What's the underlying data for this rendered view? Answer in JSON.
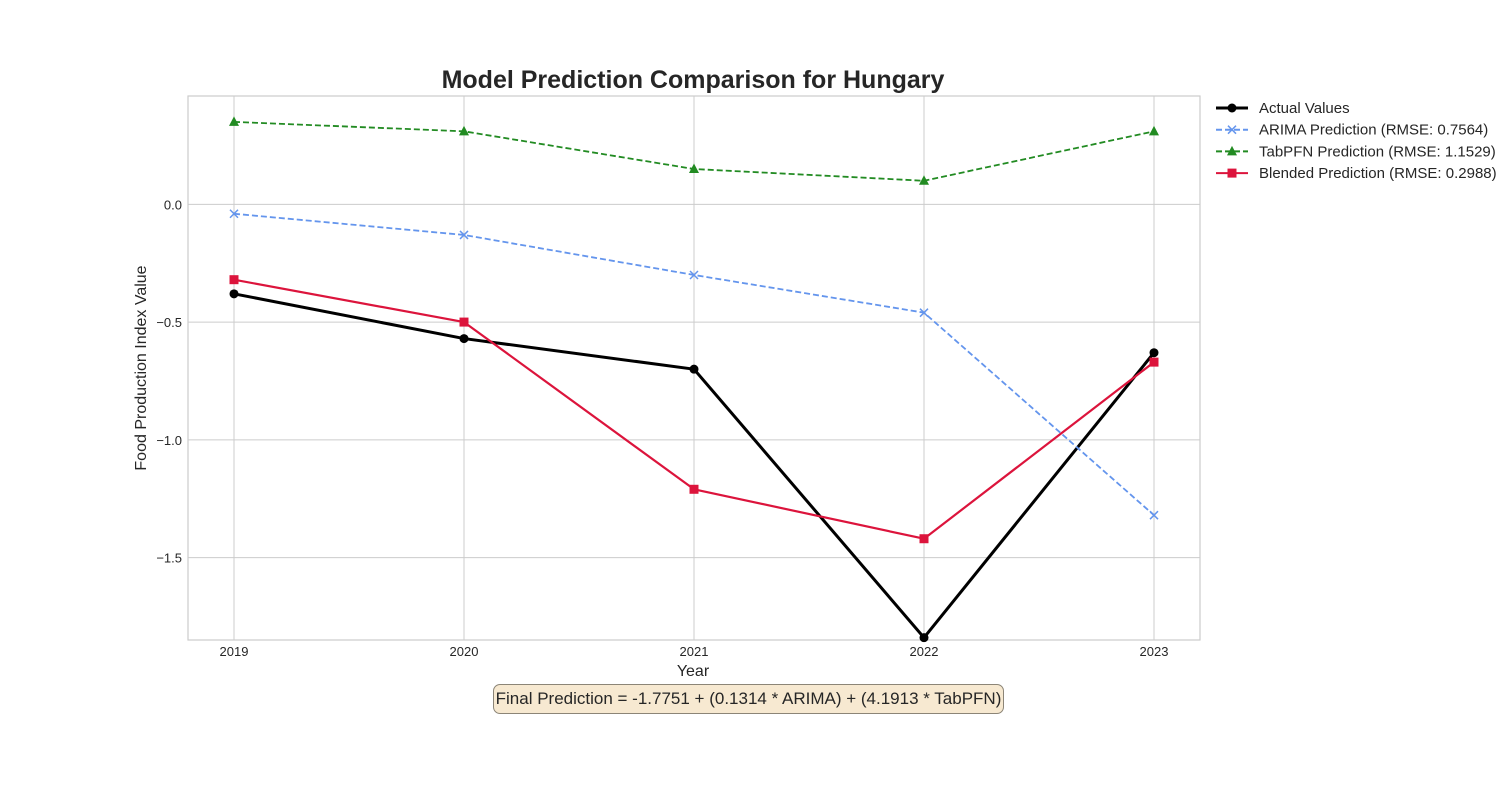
{
  "chart_data": {
    "type": "line",
    "title": "Model Prediction Comparison for Hungary",
    "xlabel": "Year",
    "ylabel": "Food Production Index Value",
    "categories": [
      "2019",
      "2020",
      "2021",
      "2022",
      "2023"
    ],
    "ylim": [
      -1.85,
      0.46
    ],
    "yticks": [
      0.0,
      -0.5,
      -1.0,
      -1.5
    ],
    "ytick_labels": [
      "0.0",
      "−0.5",
      "−1.0",
      "−1.5"
    ],
    "grid": true,
    "legend_position": "outside-top-right",
    "series": [
      {
        "name": "Actual Values",
        "values": [
          -0.38,
          -0.57,
          -0.7,
          -1.84,
          -0.63
        ],
        "color": "#000000",
        "line_style": "solid",
        "marker": "circle"
      },
      {
        "name": "ARIMA Prediction (RMSE: 0.7564)",
        "values": [
          -0.04,
          -0.13,
          -0.3,
          -0.46,
          -1.32
        ],
        "color": "#6495ed",
        "line_style": "dashed",
        "marker": "x"
      },
      {
        "name": "TabPFN Prediction (RMSE: 1.1529)",
        "values": [
          0.35,
          0.31,
          0.15,
          0.1,
          0.31
        ],
        "color": "#228b22",
        "line_style": "dashed",
        "marker": "triangle"
      },
      {
        "name": "Blended Prediction (RMSE: 0.2988)",
        "values": [
          -0.32,
          -0.5,
          -1.21,
          -1.42,
          -0.67
        ],
        "color": "#dc143c",
        "line_style": "solid",
        "marker": "square"
      }
    ],
    "annotation": "Final Prediction = -1.7751 + (0.1314 * ARIMA) + (4.1913 * TabPFN)"
  }
}
